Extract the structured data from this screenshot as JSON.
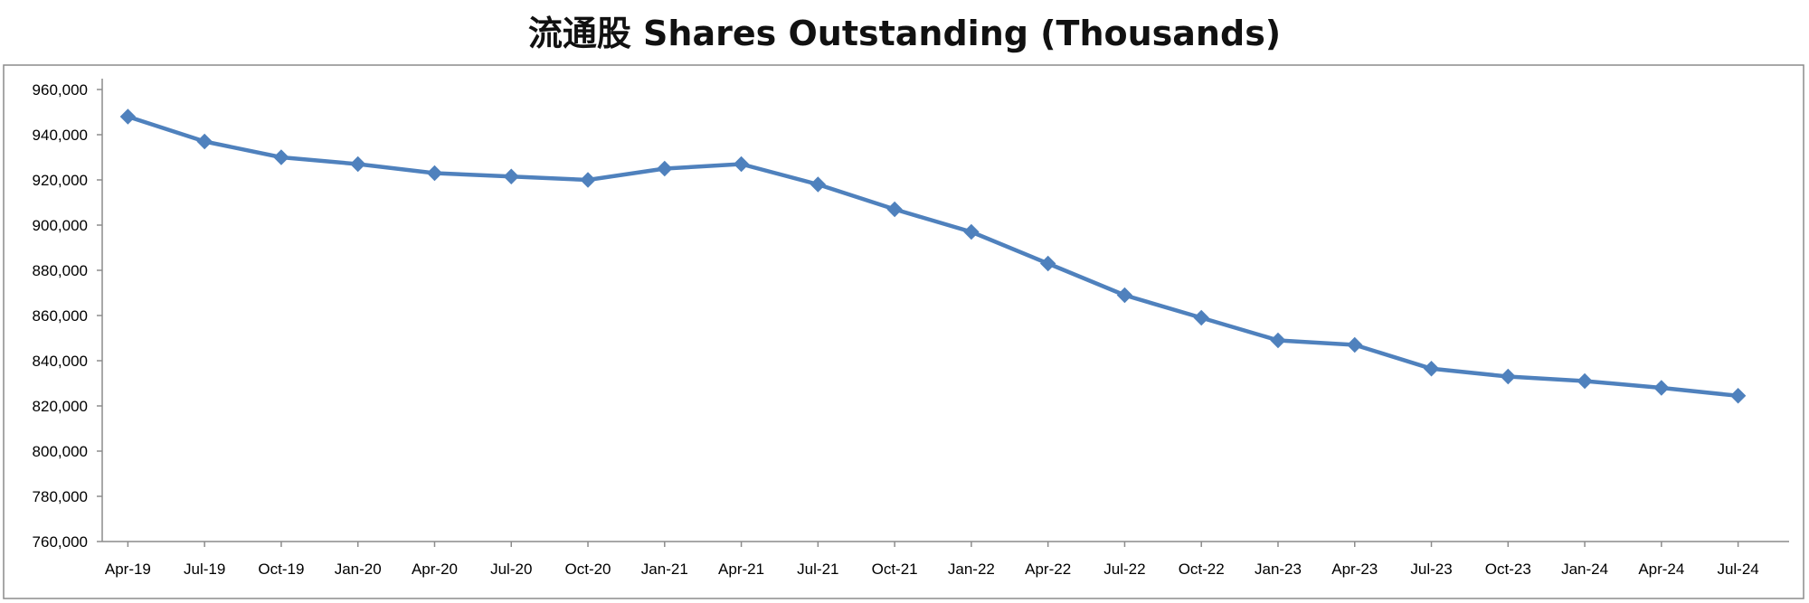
{
  "chart_data": {
    "type": "line",
    "title": "流通股 Shares Outstanding (Thousands)",
    "xlabel": "",
    "ylabel": "",
    "ylim": [
      760000,
      960000
    ],
    "yticks": [
      760000,
      780000,
      800000,
      820000,
      840000,
      860000,
      880000,
      900000,
      920000,
      940000,
      960000
    ],
    "ytick_labels": [
      "760,000",
      "780,000",
      "800,000",
      "820,000",
      "840,000",
      "860,000",
      "880,000",
      "900,000",
      "920,000",
      "940,000",
      "960,000"
    ],
    "categories": [
      "Apr-19",
      "Jul-19",
      "Oct-19",
      "Jan-20",
      "Apr-20",
      "Jul-20",
      "Oct-20",
      "Jan-21",
      "Apr-21",
      "Jul-21",
      "Oct-21",
      "Jan-22",
      "Apr-22",
      "Jul-22",
      "Oct-22",
      "Jan-23",
      "Apr-23",
      "Jul-23",
      "Oct-23",
      "Jan-24",
      "Apr-24",
      "Jul-24"
    ],
    "series": [
      {
        "values": [
          948000,
          937000,
          930000,
          927000,
          923000,
          921500,
          920000,
          925000,
          927000,
          918000,
          907000,
          897000,
          883000,
          869000,
          859000,
          849000,
          847000,
          836500,
          833000,
          831000,
          828000,
          824500
        ],
        "color": "#4f81bd",
        "marker": "diamond"
      }
    ],
    "grid": false,
    "legend": "none"
  }
}
